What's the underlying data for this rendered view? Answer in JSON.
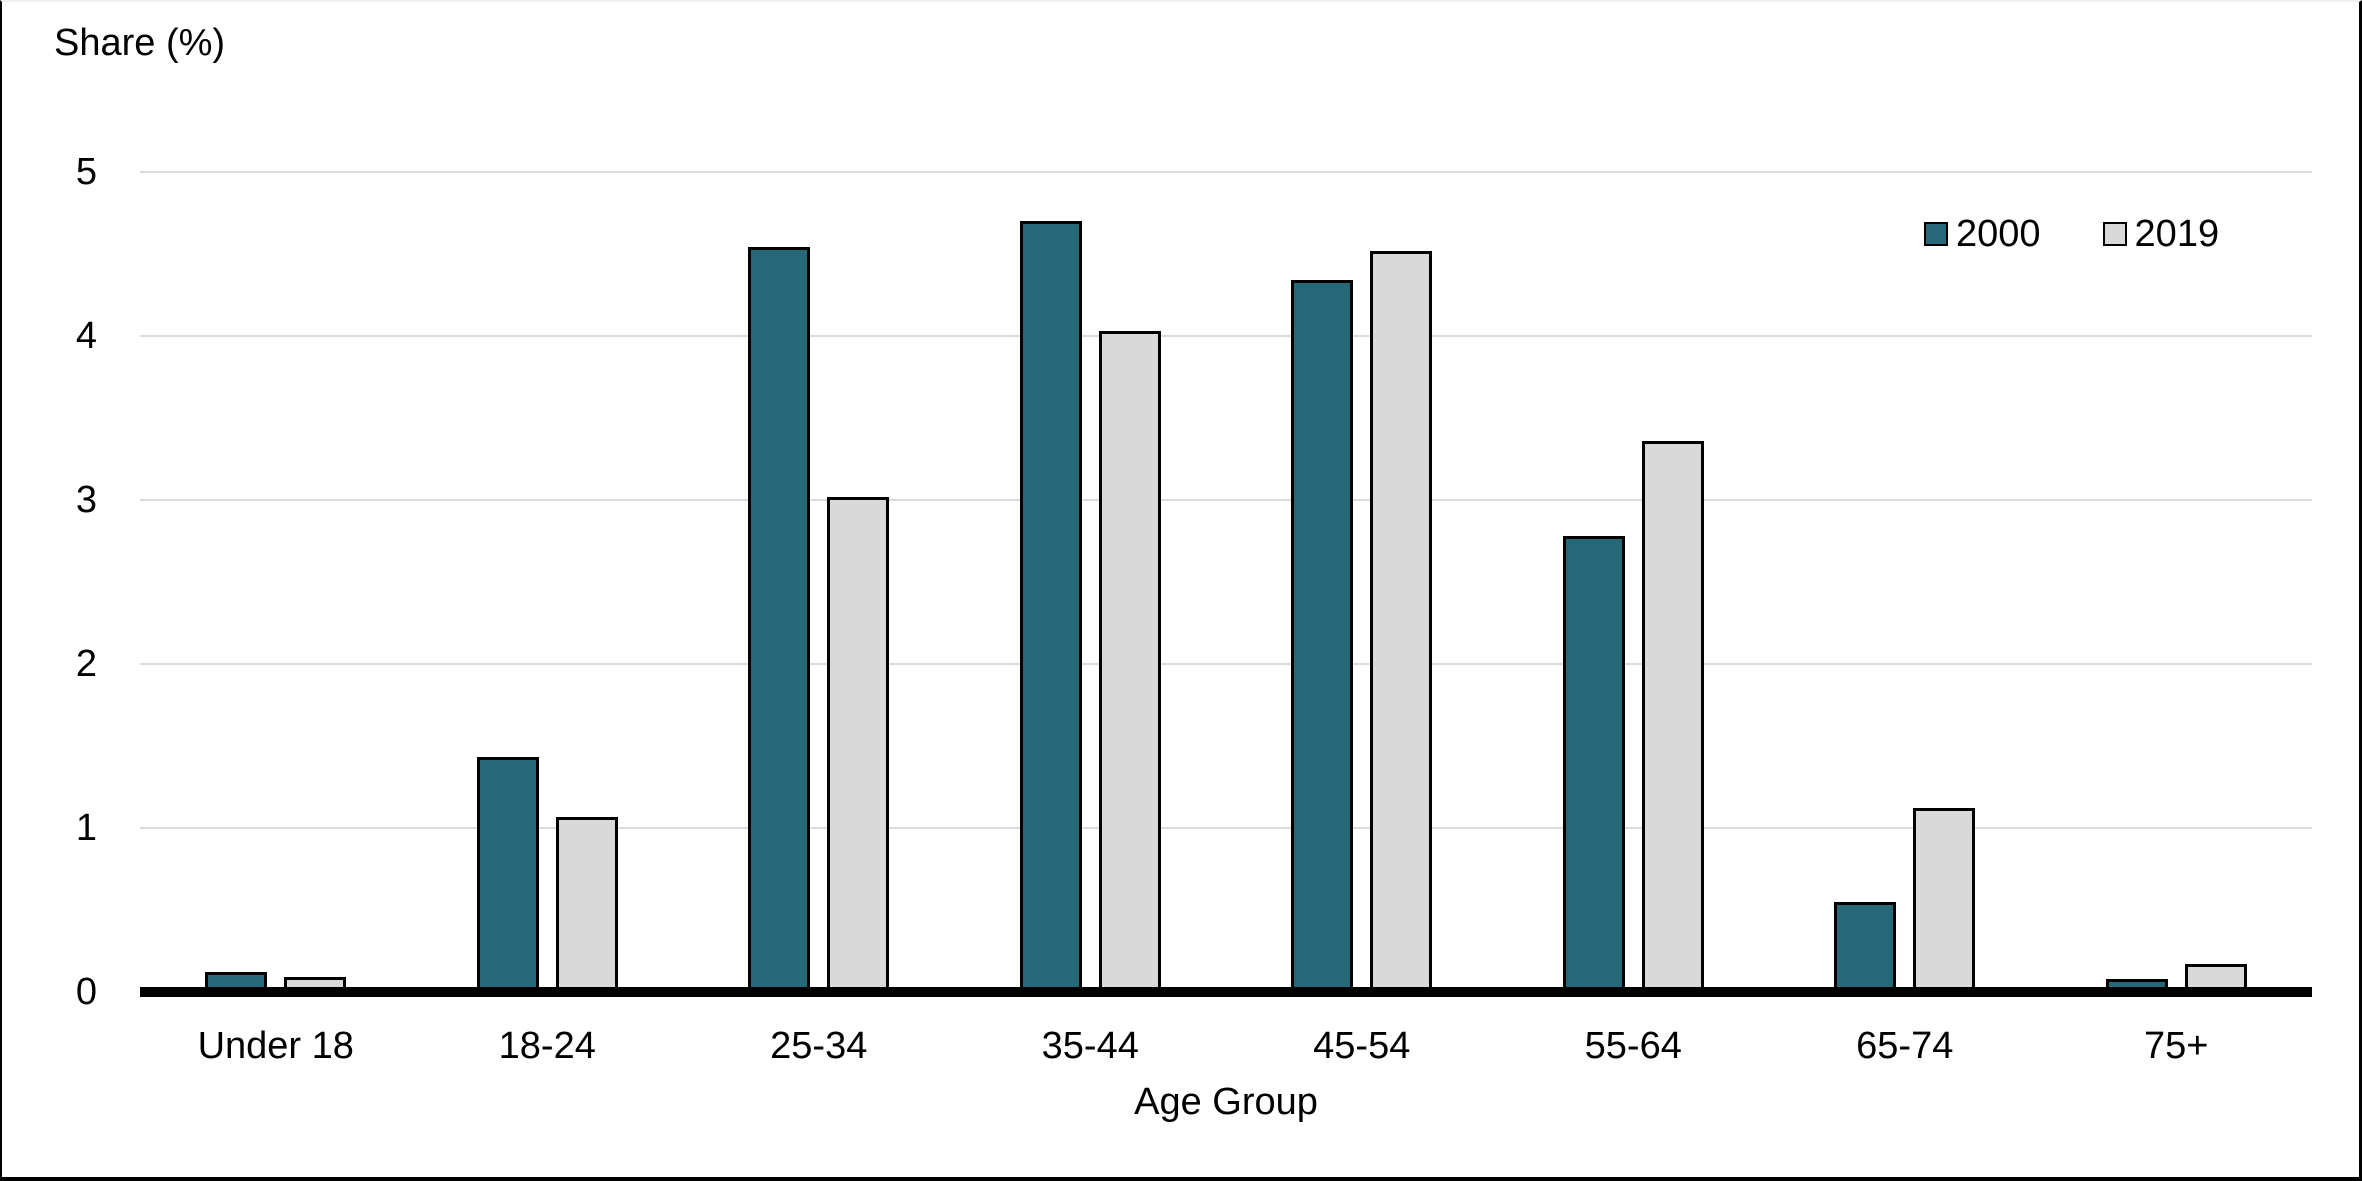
{
  "chart_data": {
    "type": "bar",
    "title": "",
    "ylabel": "Share (%)",
    "xlabel": "Age Group",
    "ylim": [
      0,
      5
    ],
    "yticks": [
      0,
      1,
      2,
      3,
      4,
      5
    ],
    "grid": true,
    "legend_position": "top-right",
    "categories": [
      "Under 18",
      "18-24",
      "25-34",
      "35-44",
      "45-54",
      "55-64",
      "65-74",
      "75+"
    ],
    "series": [
      {
        "name": "2000",
        "color": "#266878",
        "values": [
          0.12,
          1.43,
          4.54,
          4.7,
          4.34,
          2.78,
          0.55,
          0.08
        ]
      },
      {
        "name": "2019",
        "color": "#D9D9D9",
        "values": [
          0.09,
          1.07,
          3.02,
          4.03,
          4.52,
          3.36,
          1.12,
          0.17
        ]
      }
    ]
  },
  "colors": {
    "bar_border": "#000000",
    "gridline": "#DBDBDB",
    "axis": "#000000",
    "text": "#000000",
    "background": "#FFFFFF"
  }
}
